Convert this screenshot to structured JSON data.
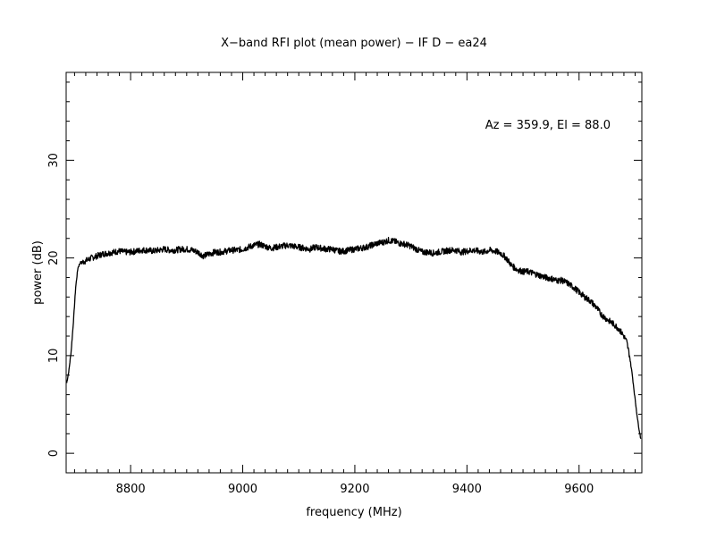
{
  "chart_data": {
    "type": "line",
    "title": "X−band RFI plot (mean power) − IF D − ea24",
    "xlabel": "frequency (MHz)",
    "ylabel": "power (dB)",
    "annotation": "Az = 359.9, El = 88.0",
    "xlim": [
      8685,
      9712
    ],
    "ylim": [
      -2,
      39
    ],
    "x_ticks": [
      8800,
      9000,
      9200,
      9400,
      9600
    ],
    "y_ticks": [
      0,
      10,
      20,
      30
    ],
    "x_tick_labels": [
      "8800",
      "9000",
      "9200",
      "9400",
      "9600"
    ],
    "y_tick_labels": [
      "0",
      "10",
      "20",
      "30"
    ],
    "grid": false,
    "line_color": "#000000",
    "series": [
      {
        "x": [
          8686,
          8690,
          8694,
          8698,
          8702,
          8706,
          8710,
          8715,
          8720,
          8730,
          8740,
          8750,
          8760,
          8770,
          8780,
          8790,
          8800,
          8810,
          8820,
          8830,
          8840,
          8850,
          8860,
          8870,
          8880,
          8890,
          8900,
          8910,
          8920,
          8930,
          8940,
          8950,
          8960,
          8970,
          8980,
          8990,
          9000,
          9010,
          9020,
          9030,
          9040,
          9050,
          9060,
          9070,
          9080,
          9090,
          9100,
          9110,
          9120,
          9130,
          9140,
          9150,
          9160,
          9170,
          9180,
          9190,
          9200,
          9210,
          9220,
          9230,
          9240,
          9250,
          9260,
          9270,
          9280,
          9290,
          9300,
          9310,
          9320,
          9330,
          9340,
          9350,
          9360,
          9370,
          9380,
          9390,
          9400,
          9410,
          9420,
          9430,
          9440,
          9450,
          9460,
          9470,
          9480,
          9490,
          9500,
          9510,
          9520,
          9530,
          9540,
          9550,
          9560,
          9570,
          9580,
          9590,
          9600,
          9610,
          9620,
          9630,
          9640,
          9650,
          9660,
          9670,
          9680,
          9685,
          9690,
          9695,
          9700,
          9705,
          9710
        ],
        "y": [
          7.2,
          8.5,
          10.5,
          13.5,
          17.0,
          19.0,
          19.5,
          19.6,
          19.7,
          20.0,
          20.2,
          20.4,
          20.5,
          20.6,
          20.7,
          20.6,
          20.6,
          20.7,
          20.8,
          20.8,
          20.7,
          20.8,
          20.9,
          20.8,
          20.8,
          20.9,
          20.9,
          20.8,
          20.6,
          20.2,
          20.4,
          20.6,
          20.6,
          20.7,
          20.8,
          20.8,
          20.9,
          21.1,
          21.3,
          21.4,
          21.2,
          21.0,
          21.1,
          21.2,
          21.3,
          21.2,
          21.1,
          21.0,
          20.9,
          21.1,
          21.0,
          20.9,
          20.9,
          20.7,
          20.7,
          20.8,
          20.9,
          21.0,
          21.1,
          21.3,
          21.5,
          21.6,
          21.8,
          21.7,
          21.5,
          21.4,
          21.2,
          20.9,
          20.6,
          20.6,
          20.5,
          20.6,
          20.7,
          20.8,
          20.8,
          20.6,
          20.7,
          20.8,
          20.7,
          20.6,
          20.8,
          20.7,
          20.5,
          20.0,
          19.2,
          18.8,
          18.6,
          18.6,
          18.4,
          18.2,
          18.0,
          17.9,
          17.7,
          17.7,
          17.4,
          17.0,
          16.5,
          16.0,
          15.6,
          15.0,
          14.2,
          13.7,
          13.3,
          12.8,
          12.0,
          11.4,
          10.0,
          8.0,
          5.5,
          3.2,
          1.5
        ]
      }
    ]
  }
}
